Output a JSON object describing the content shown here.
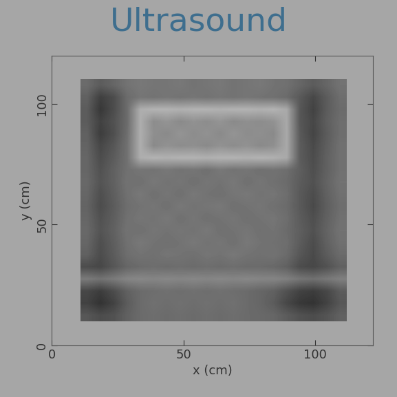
{
  "chart_data": {
    "type": "heatmap",
    "title": "Ultrasound",
    "x_label": "x (cm)",
    "y_label": "y (cm)",
    "xlim": [
      0,
      122
    ],
    "ylim": [
      0,
      120
    ],
    "xticks": [
      0,
      50,
      100
    ],
    "yticks": [
      0,
      50,
      100
    ],
    "color": "#3e6e8e",
    "x_extent": [
      11,
      112
    ],
    "y_extent": [
      10,
      110
    ],
    "cell_range": [
      0,
      1
    ],
    "cells": [
      [
        0.42,
        0.36,
        0.4,
        0.45,
        0.47,
        0.46,
        0.46,
        0.47,
        0.45,
        0.46,
        0.47,
        0.45,
        0.46,
        0.47,
        0.45,
        0.44,
        0.4,
        0.36,
        0.4,
        0.45
      ],
      [
        0.38,
        0.25,
        0.3,
        0.42,
        0.46,
        0.45,
        0.46,
        0.45,
        0.46,
        0.45,
        0.46,
        0.45,
        0.46,
        0.45,
        0.44,
        0.42,
        0.35,
        0.28,
        0.36,
        0.43
      ],
      [
        0.36,
        0.22,
        0.3,
        0.42,
        0.68,
        0.7,
        0.7,
        0.69,
        0.7,
        0.7,
        0.69,
        0.7,
        0.7,
        0.69,
        0.7,
        0.66,
        0.34,
        0.26,
        0.36,
        0.42
      ],
      [
        0.36,
        0.26,
        0.32,
        0.42,
        0.68,
        0.55,
        0.58,
        0.54,
        0.57,
        0.55,
        0.58,
        0.54,
        0.56,
        0.55,
        0.57,
        0.66,
        0.34,
        0.28,
        0.37,
        0.43
      ],
      [
        0.38,
        0.24,
        0.31,
        0.43,
        0.68,
        0.56,
        0.54,
        0.58,
        0.55,
        0.57,
        0.54,
        0.58,
        0.55,
        0.56,
        0.54,
        0.66,
        0.35,
        0.27,
        0.36,
        0.43
      ],
      [
        0.39,
        0.28,
        0.34,
        0.44,
        0.68,
        0.54,
        0.57,
        0.55,
        0.56,
        0.54,
        0.57,
        0.55,
        0.57,
        0.54,
        0.56,
        0.66,
        0.36,
        0.29,
        0.37,
        0.44
      ],
      [
        0.4,
        0.3,
        0.36,
        0.44,
        0.68,
        0.7,
        0.69,
        0.7,
        0.7,
        0.69,
        0.7,
        0.7,
        0.69,
        0.7,
        0.69,
        0.66,
        0.36,
        0.3,
        0.38,
        0.44
      ],
      [
        0.4,
        0.32,
        0.38,
        0.44,
        0.46,
        0.45,
        0.47,
        0.45,
        0.46,
        0.44,
        0.47,
        0.45,
        0.46,
        0.44,
        0.45,
        0.43,
        0.37,
        0.31,
        0.38,
        0.44
      ],
      [
        0.41,
        0.33,
        0.38,
        0.45,
        0.44,
        0.47,
        0.45,
        0.46,
        0.44,
        0.46,
        0.45,
        0.47,
        0.44,
        0.46,
        0.44,
        0.42,
        0.36,
        0.32,
        0.39,
        0.45
      ],
      [
        0.4,
        0.31,
        0.37,
        0.44,
        0.47,
        0.44,
        0.46,
        0.44,
        0.47,
        0.45,
        0.44,
        0.46,
        0.47,
        0.45,
        0.46,
        0.43,
        0.35,
        0.3,
        0.38,
        0.44
      ],
      [
        0.39,
        0.3,
        0.36,
        0.43,
        0.45,
        0.46,
        0.44,
        0.47,
        0.45,
        0.46,
        0.47,
        0.44,
        0.45,
        0.46,
        0.44,
        0.42,
        0.35,
        0.29,
        0.37,
        0.43
      ],
      [
        0.4,
        0.32,
        0.37,
        0.44,
        0.46,
        0.45,
        0.47,
        0.44,
        0.46,
        0.44,
        0.45,
        0.46,
        0.44,
        0.45,
        0.46,
        0.43,
        0.36,
        0.31,
        0.38,
        0.44
      ],
      [
        0.41,
        0.33,
        0.38,
        0.45,
        0.44,
        0.46,
        0.45,
        0.46,
        0.45,
        0.47,
        0.44,
        0.45,
        0.46,
        0.44,
        0.45,
        0.42,
        0.37,
        0.32,
        0.39,
        0.45
      ],
      [
        0.4,
        0.31,
        0.37,
        0.44,
        0.47,
        0.45,
        0.44,
        0.45,
        0.47,
        0.45,
        0.46,
        0.44,
        0.47,
        0.45,
        0.44,
        0.43,
        0.36,
        0.3,
        0.38,
        0.44
      ],
      [
        0.38,
        0.3,
        0.36,
        0.43,
        0.45,
        0.44,
        0.46,
        0.45,
        0.44,
        0.46,
        0.45,
        0.47,
        0.45,
        0.44,
        0.45,
        0.42,
        0.34,
        0.29,
        0.36,
        0.42
      ],
      [
        0.3,
        0.28,
        0.34,
        0.4,
        0.42,
        0.43,
        0.42,
        0.43,
        0.42,
        0.43,
        0.42,
        0.43,
        0.42,
        0.42,
        0.41,
        0.38,
        0.3,
        0.28,
        0.32,
        0.38
      ],
      [
        0.48,
        0.45,
        0.48,
        0.52,
        0.53,
        0.52,
        0.53,
        0.52,
        0.53,
        0.52,
        0.53,
        0.52,
        0.53,
        0.52,
        0.52,
        0.5,
        0.46,
        0.44,
        0.47,
        0.5
      ],
      [
        0.28,
        0.24,
        0.3,
        0.38,
        0.42,
        0.43,
        0.44,
        0.43,
        0.44,
        0.43,
        0.44,
        0.43,
        0.42,
        0.4,
        0.38,
        0.32,
        0.26,
        0.24,
        0.28,
        0.36
      ],
      [
        0.26,
        0.2,
        0.26,
        0.36,
        0.42,
        0.44,
        0.43,
        0.44,
        0.43,
        0.44,
        0.43,
        0.44,
        0.42,
        0.4,
        0.36,
        0.28,
        0.22,
        0.2,
        0.26,
        0.34
      ],
      [
        0.34,
        0.3,
        0.32,
        0.38,
        0.42,
        0.43,
        0.42,
        0.43,
        0.42,
        0.43,
        0.42,
        0.43,
        0.42,
        0.41,
        0.4,
        0.36,
        0.32,
        0.3,
        0.33,
        0.38
      ]
    ]
  }
}
